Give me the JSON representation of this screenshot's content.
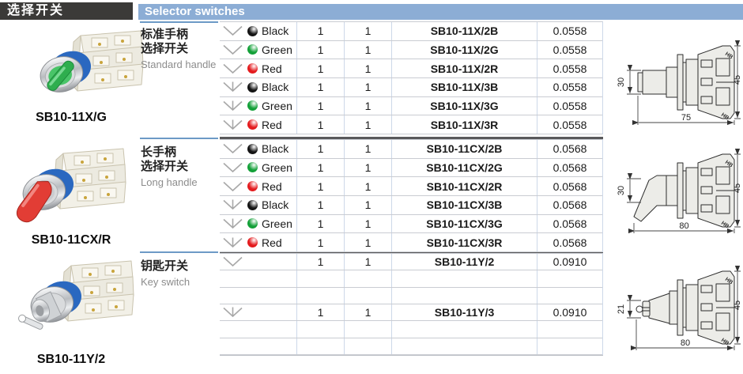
{
  "header": {
    "title_cn": "选择开关",
    "title_en": "Selector switches"
  },
  "sections": [
    {
      "photo_caption": "SB10-11X/G",
      "photo_type": "standard",
      "desc_cn_1": "标准手柄",
      "desc_cn_2": "选择开关",
      "desc_en": "Standard handle",
      "rows": [
        {
          "positions": "2",
          "color": "black",
          "color_label": "Black",
          "qty1": "1",
          "qty2": "1",
          "model": "SB10-11X/2B",
          "weight": "0.0558"
        },
        {
          "positions": "2",
          "color": "green",
          "color_label": "Green",
          "qty1": "1",
          "qty2": "1",
          "model": "SB10-11X/2G",
          "weight": "0.0558"
        },
        {
          "positions": "2",
          "color": "red",
          "color_label": "Red",
          "qty1": "1",
          "qty2": "1",
          "model": "SB10-11X/2R",
          "weight": "0.0558"
        },
        {
          "positions": "3",
          "color": "black",
          "color_label": "Black",
          "qty1": "1",
          "qty2": "1",
          "model": "SB10-11X/3B",
          "weight": "0.0558"
        },
        {
          "positions": "3",
          "color": "green",
          "color_label": "Green",
          "qty1": "1",
          "qty2": "1",
          "model": "SB10-11X/3G",
          "weight": "0.0558"
        },
        {
          "positions": "3",
          "color": "red",
          "color_label": "Red",
          "qty1": "1",
          "qty2": "1",
          "model": "SB10-11X/3R",
          "weight": "0.0558"
        }
      ],
      "drawing": {
        "handle": "standard",
        "dim_side": "30",
        "dim_height": "45",
        "dim_length": "75"
      }
    },
    {
      "photo_caption": "SB10-11CX/R",
      "photo_type": "long",
      "desc_cn_1": "长手柄",
      "desc_cn_2": "选择开关",
      "desc_en": "Long handle",
      "rows": [
        {
          "positions": "2",
          "color": "black",
          "color_label": "Black",
          "qty1": "1",
          "qty2": "1",
          "model": "SB10-11CX/2B",
          "weight": "0.0568"
        },
        {
          "positions": "2",
          "color": "green",
          "color_label": "Green",
          "qty1": "1",
          "qty2": "1",
          "model": "SB10-11CX/2G",
          "weight": "0.0568"
        },
        {
          "positions": "2",
          "color": "red",
          "color_label": "Red",
          "qty1": "1",
          "qty2": "1",
          "model": "SB10-11CX/2R",
          "weight": "0.0568"
        },
        {
          "positions": "3",
          "color": "black",
          "color_label": "Black",
          "qty1": "1",
          "qty2": "1",
          "model": "SB10-11CX/3B",
          "weight": "0.0568"
        },
        {
          "positions": "3",
          "color": "green",
          "color_label": "Green",
          "qty1": "1",
          "qty2": "1",
          "model": "SB10-11CX/3G",
          "weight": "0.0568"
        },
        {
          "positions": "3",
          "color": "red",
          "color_label": "Red",
          "qty1": "1",
          "qty2": "1",
          "model": "SB10-11CX/3R",
          "weight": "0.0568"
        }
      ],
      "drawing": {
        "handle": "long",
        "dim_side": "30",
        "dim_height": "45",
        "dim_length": "80"
      }
    },
    {
      "photo_caption": "SB10-11Y/2",
      "photo_type": "key",
      "desc_cn_1": "钥匙开关",
      "desc_cn_2": "",
      "desc_en": "Key switch",
      "rows": [
        {
          "positions": "2",
          "color": null,
          "color_label": "",
          "qty1": "1",
          "qty2": "1",
          "model": "SB10-11Y/2",
          "weight": "0.0910"
        },
        {
          "positions": "",
          "color": null,
          "color_label": "",
          "qty1": "",
          "qty2": "",
          "model": "",
          "weight": ""
        },
        {
          "positions": "",
          "color": null,
          "color_label": "",
          "qty1": "",
          "qty2": "",
          "model": "",
          "weight": ""
        },
        {
          "positions": "3",
          "color": null,
          "color_label": "",
          "qty1": "1",
          "qty2": "1",
          "model": "SB10-11Y/3",
          "weight": "0.0910"
        },
        {
          "positions": "",
          "color": null,
          "color_label": "",
          "qty1": "",
          "qty2": "",
          "model": "",
          "weight": ""
        },
        {
          "positions": "",
          "color": null,
          "color_label": "",
          "qty1": "",
          "qty2": "",
          "model": "",
          "weight": ""
        }
      ],
      "drawing": {
        "handle": "key",
        "dim_side": "21",
        "dim_height": "45",
        "dim_length": "80"
      }
    }
  ],
  "colors": {
    "accent_bar": "#8cadd5",
    "title_block": "#3b3a38",
    "dot_black": "#141414",
    "dot_green": "#13a038",
    "dot_red": "#e41b1e",
    "handle_green": "#2fae4e",
    "handle_red": "#e23d35",
    "ring_blue": "#2a68c0",
    "position_icon_gray": "#a8a8a8"
  }
}
